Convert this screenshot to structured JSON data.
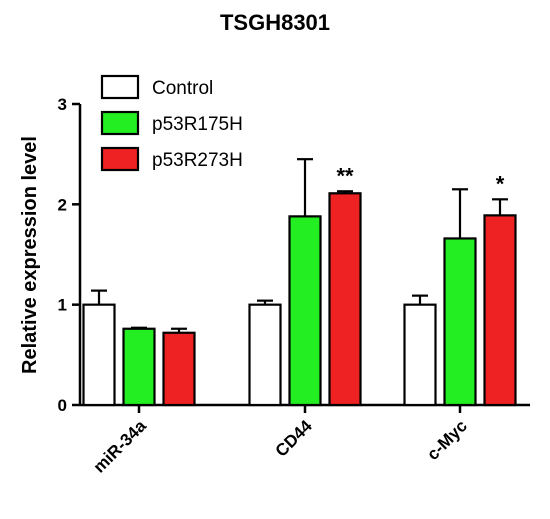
{
  "chart_data": {
    "type": "bar",
    "title": "TSGH8301",
    "ylabel": "Relative expression level",
    "xlabel": "",
    "ylim": [
      0,
      3
    ],
    "yticks": [
      "0",
      "1",
      "2",
      "3"
    ],
    "categories": [
      "miR-34a",
      "CD44",
      "c-Myc"
    ],
    "series": [
      {
        "name": "Control",
        "color": "#ffffff",
        "values": [
          1.0,
          1.0,
          1.0
        ],
        "errors": [
          0.14,
          0.04,
          0.09
        ]
      },
      {
        "name": "p53R175H",
        "color": "#22ee22",
        "values": [
          0.76,
          1.88,
          1.66
        ],
        "errors": [
          0.01,
          0.57,
          0.49
        ]
      },
      {
        "name": "p53R273H",
        "color": "#ee2222",
        "values": [
          0.72,
          2.11,
          1.89
        ],
        "errors": [
          0.04,
          0.02,
          0.16
        ]
      }
    ],
    "significance": [
      {
        "category": "CD44",
        "series": "p53R273H",
        "label": "**"
      },
      {
        "category": "c-Myc",
        "series": "p53R273H",
        "label": "*"
      }
    ],
    "legend_position": "top-left",
    "grid": false
  }
}
